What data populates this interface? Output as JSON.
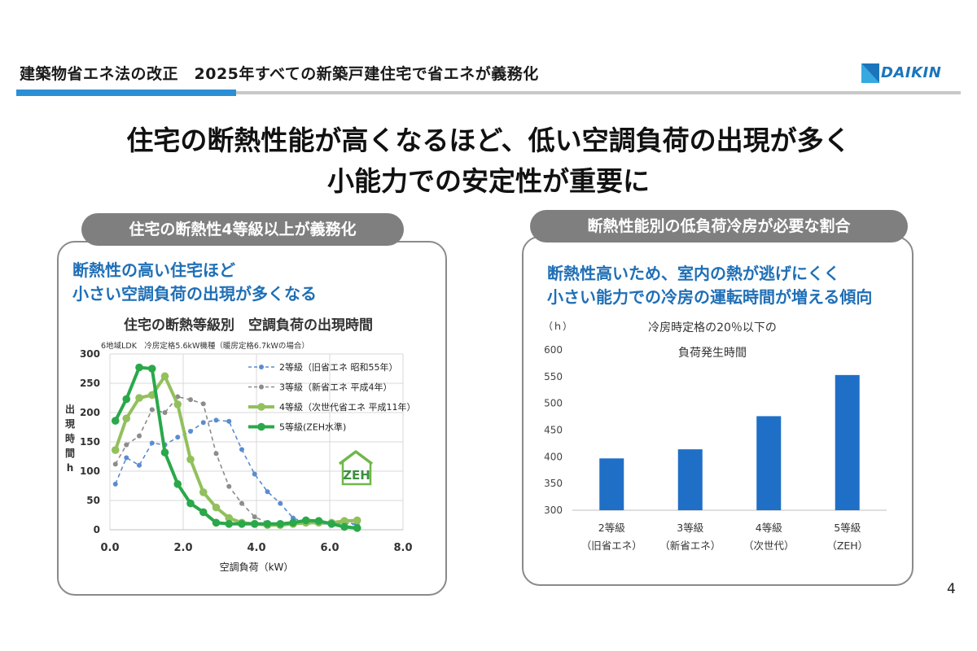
{
  "header": {
    "title": "建築物省エネ法の改正　2025年すべての新築戸建住宅で省エネが義務化",
    "logo_text": "DAIKIN",
    "accent_blue": "#2b8fd6"
  },
  "headline": {
    "line1": "住宅の断熱性能が高くなるほど、低い空調負荷の出現が多く",
    "line2": "小能力での安定性が重要に"
  },
  "left_panel": {
    "pill": "住宅の断熱性4等級以上が義務化",
    "subtitle_line1": "断熱性の高い住宅ほど",
    "subtitle_line2": "小さい空調負荷の出現が多くなる",
    "badge_text": "ZEH"
  },
  "right_panel": {
    "pill": "断熱性能別の低負荷冷房が必要な割合",
    "subtitle_line1": "断熱性高いため、室内の熱が逃げにくく",
    "subtitle_line2": "小さい能力での冷房の運転時間が増える傾向"
  },
  "page_number": "4",
  "chart_data": [
    {
      "type": "line",
      "title": "住宅の断熱等級別　空調負荷の出現時間",
      "subtitle": "6地域LDK　冷房定格5.6kW機種（暖房定格6.7kWの場合）",
      "xlabel": "空調負荷（kW）",
      "ylabel_chars": [
        "出",
        "現",
        "時",
        "間",
        "h"
      ],
      "xlim": [
        0,
        8
      ],
      "ylim": [
        0,
        300
      ],
      "x_ticks": [
        "0.0",
        "2.0",
        "4.0",
        "6.0",
        "8.0"
      ],
      "y_ticks": [
        "0",
        "50",
        "100",
        "150",
        "200",
        "250",
        "300"
      ],
      "grid": true,
      "legend_position": "top-right",
      "series": [
        {
          "name": "2等級（旧省エネ 昭和55年）",
          "color": "#5b8ccf",
          "dash": true,
          "x": [
            0.15,
            0.45,
            0.8,
            1.15,
            1.5,
            1.85,
            2.2,
            2.55,
            2.9,
            3.25,
            3.6,
            3.95,
            4.3,
            4.65,
            5.0,
            5.35,
            5.7,
            6.05,
            6.4,
            6.75
          ],
          "y": [
            78,
            123,
            110,
            148,
            145,
            158,
            168,
            183,
            187,
            185,
            137,
            95,
            65,
            45,
            20,
            12,
            10,
            10,
            12,
            8
          ]
        },
        {
          "name": "3等級（新省エネ 平成4年）",
          "color": "#8c8c8c",
          "dash": true,
          "x": [
            0.15,
            0.45,
            0.8,
            1.15,
            1.5,
            1.85,
            2.2,
            2.55,
            2.9,
            3.25,
            3.6,
            3.95,
            4.3,
            4.65,
            5.0,
            5.35,
            5.7,
            6.05,
            6.4,
            6.75
          ],
          "y": [
            112,
            145,
            160,
            205,
            200,
            227,
            222,
            215,
            130,
            74,
            45,
            22,
            12,
            8,
            8,
            10,
            10,
            10,
            12,
            10
          ]
        },
        {
          "name": "4等級（次世代省エネ 平成11年）",
          "color": "#92c05c",
          "dash": false,
          "x": [
            0.15,
            0.45,
            0.8,
            1.15,
            1.5,
            1.85,
            2.2,
            2.55,
            2.9,
            3.25,
            3.6,
            3.95,
            4.3,
            4.65,
            5.0,
            5.35,
            5.7,
            6.05,
            6.4,
            6.75
          ],
          "y": [
            136,
            190,
            225,
            230,
            262,
            214,
            120,
            64,
            38,
            20,
            12,
            10,
            8,
            8,
            10,
            12,
            12,
            12,
            15,
            16
          ]
        },
        {
          "name": "5等級(ZEH水準)",
          "color": "#2aa84a",
          "dash": false,
          "x": [
            0.15,
            0.45,
            0.8,
            1.15,
            1.5,
            1.85,
            2.2,
            2.55,
            2.9,
            3.25,
            3.6,
            3.95,
            4.3,
            4.65,
            5.0,
            5.35,
            5.7,
            6.05,
            6.4,
            6.75
          ],
          "y": [
            186,
            223,
            277,
            275,
            132,
            78,
            45,
            30,
            12,
            10,
            10,
            10,
            10,
            10,
            12,
            16,
            15,
            10,
            5,
            3
          ]
        }
      ]
    },
    {
      "type": "bar",
      "title": "冷房時定格の20％以下の",
      "title_line2": "負荷発生時間",
      "ylabel": "（ｈ）",
      "categories": [
        "2等級",
        "3等級",
        "4等級",
        "5等級"
      ],
      "category_sub": [
        "（旧省エネ）",
        "（新省エネ）",
        "（次世代）",
        "（ZEH）"
      ],
      "values": [
        397,
        414,
        476,
        553
      ],
      "ylim": [
        300,
        600
      ],
      "y_ticks": [
        "300",
        "350",
        "400",
        "450",
        "500",
        "550",
        "600"
      ],
      "bar_color": "#1f6fc6",
      "grid": false
    }
  ]
}
